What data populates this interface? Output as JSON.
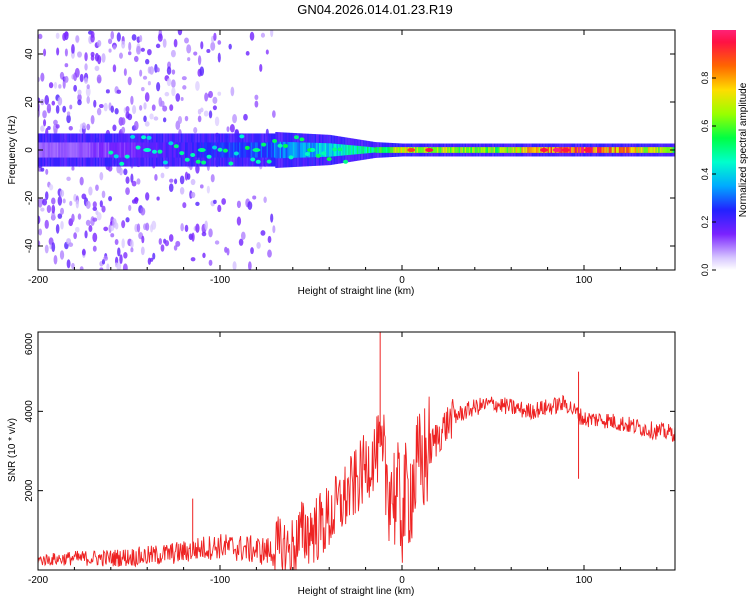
{
  "title": "GN04.2026.014.01.23.R19",
  "chart_data": [
    {
      "type": "heatmap",
      "xlabel": "Height of straight line (km)",
      "ylabel": "Frequency (Hz)",
      "xlim": [
        -200,
        150
      ],
      "ylim": [
        -50,
        50
      ],
      "xticks": [
        -200,
        -100,
        0,
        100
      ],
      "yticks": [
        40,
        20,
        0,
        -20,
        -40
      ],
      "colorbar": {
        "label": "Normalized spectral amplitude",
        "range": [
          0.0,
          1.0
        ],
        "ticks": [
          0.0,
          0.2,
          0.4,
          0.6,
          0.8
        ]
      },
      "ridge_frequency_hz": 0,
      "description_points": [
        {
          "height_km": -200,
          "freq_spread_hz": 50,
          "amplitude": 0.1
        },
        {
          "height_km": -150,
          "freq_spread_hz": 50,
          "amplitude": 0.15
        },
        {
          "height_km": -100,
          "freq_spread_hz": 45,
          "amplitude": 0.25
        },
        {
          "height_km": -70,
          "freq_spread_hz": 10,
          "amplitude": 0.3
        },
        {
          "height_km": -40,
          "freq_spread_hz": 8,
          "amplitude": 0.4
        },
        {
          "height_km": -15,
          "freq_spread_hz": 3,
          "amplitude": 0.5
        },
        {
          "height_km": 0,
          "freq_spread_hz": 2,
          "amplitude": 0.7
        },
        {
          "height_km": 50,
          "freq_spread_hz": 2,
          "amplitude": 0.6
        },
        {
          "height_km": 85,
          "freq_spread_hz": 2,
          "amplitude": 0.85
        },
        {
          "height_km": 100,
          "freq_spread_hz": 2,
          "amplitude": 0.9
        },
        {
          "height_km": 150,
          "freq_spread_hz": 2,
          "amplitude": 0.6
        }
      ]
    },
    {
      "type": "line",
      "xlabel": "Height of straight line (km)",
      "ylabel": "SNR (10 * v/v)",
      "xlim": [
        -200,
        150
      ],
      "ylim": [
        0,
        6000
      ],
      "xticks": [
        -200,
        -100,
        0,
        100
      ],
      "yticks": [
        2000,
        4000,
        6000
      ],
      "series": [
        {
          "name": "SNR",
          "color": "#ee2222",
          "x": [
            -200,
            -180,
            -160,
            -140,
            -120,
            -110,
            -100,
            -90,
            -80,
            -70,
            -60,
            -55,
            -50,
            -45,
            -40,
            -35,
            -30,
            -25,
            -20,
            -15,
            -12,
            -10,
            -5,
            0,
            5,
            10,
            15,
            20,
            25,
            30,
            40,
            50,
            60,
            70,
            80,
            90,
            95,
            100,
            110,
            120,
            130,
            140,
            150
          ],
          "y": [
            250,
            300,
            300,
            350,
            450,
            550,
            600,
            550,
            500,
            450,
            500,
            900,
            1000,
            1100,
            1300,
            1600,
            1900,
            2200,
            2600,
            2900,
            3100,
            2500,
            2000,
            1500,
            2100,
            2600,
            3000,
            3400,
            3700,
            3900,
            4100,
            4200,
            4100,
            4000,
            4100,
            4200,
            4000,
            3800,
            3800,
            3700,
            3600,
            3500,
            3450
          ]
        }
      ],
      "spikes": [
        {
          "x": -115,
          "y": 1800
        },
        {
          "x": -12,
          "y": 6000
        },
        {
          "x": 97,
          "y": 2300
        },
        {
          "x": 97,
          "y": 5000
        }
      ]
    }
  ]
}
